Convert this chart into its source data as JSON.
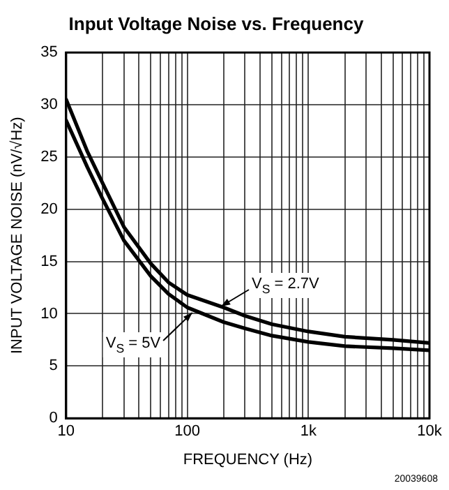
{
  "chart_data": {
    "type": "line",
    "title": "Input Voltage Noise vs. Frequency",
    "xlabel": "FREQUENCY (Hz)",
    "ylabel": "INPUT VOLTAGE NOISE (nV/√Hz)",
    "log": "x",
    "grid": true,
    "legend": false,
    "marker": "none",
    "line_style": "solid",
    "xlim": [
      10,
      10000
    ],
    "ylim": [
      0,
      35
    ],
    "xticks": [
      10,
      {
        "value": 20,
        "label": null
      },
      {
        "value": 30,
        "label": null
      },
      {
        "value": 40,
        "label": null
      },
      {
        "value": 50,
        "label": null
      },
      {
        "value": 60,
        "label": null
      },
      {
        "value": 70,
        "label": null
      },
      {
        "value": 80,
        "label": null
      },
      {
        "value": 90,
        "label": null
      },
      100,
      {
        "value": 200,
        "label": null
      },
      {
        "value": 300,
        "label": null
      },
      {
        "value": 400,
        "label": null
      },
      {
        "value": 500,
        "label": null
      },
      {
        "value": 600,
        "label": null
      },
      {
        "value": 700,
        "label": null
      },
      {
        "value": 800,
        "label": null
      },
      {
        "value": 900,
        "label": null
      },
      {
        "value": 1000,
        "label": "1k"
      },
      {
        "value": 2000,
        "label": null
      },
      {
        "value": 3000,
        "label": null
      },
      {
        "value": 4000,
        "label": null
      },
      {
        "value": 5000,
        "label": null
      },
      {
        "value": 6000,
        "label": null
      },
      {
        "value": 7000,
        "label": null
      },
      {
        "value": 8000,
        "label": null
      },
      {
        "value": 9000,
        "label": null
      },
      {
        "value": 10000,
        "label": "10k"
      }
    ],
    "yticks": [
      0,
      5,
      10,
      15,
      20,
      25,
      30,
      35
    ],
    "x": [
      10,
      15,
      20,
      30,
      50,
      70,
      100,
      200,
      300,
      500,
      1000,
      2000,
      5000,
      10000
    ],
    "series": [
      {
        "color": "#000000",
        "values": [
          30.5,
          25.5,
          22.5,
          18.3,
          14.8,
          13.0,
          11.8,
          10.6,
          9.8,
          9.0,
          8.3,
          7.8,
          7.5,
          7.2
        ]
      },
      {
        "color": "#000000",
        "values": [
          28.5,
          24.0,
          21.0,
          17.0,
          13.6,
          11.9,
          10.6,
          9.2,
          8.6,
          7.9,
          7.3,
          6.9,
          6.7,
          6.5
        ]
      }
    ],
    "annotations": [
      {
        "text": "V$_{S}$ = 2.7V",
        "x": 190,
        "y": 10.7
      },
      {
        "text": "V$_{S}$ = 5V",
        "x": 110,
        "y": 10.1
      },
      "20039608"
    ]
  }
}
